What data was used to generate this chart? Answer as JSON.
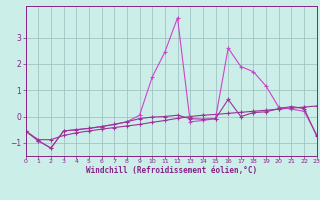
{
  "xlabel": "Windchill (Refroidissement éolien,°C)",
  "xlim": [
    0,
    23
  ],
  "ylim": [
    -1.5,
    4.2
  ],
  "yticks": [
    -1,
    0,
    1,
    2,
    3
  ],
  "xticks": [
    0,
    1,
    2,
    3,
    4,
    5,
    6,
    7,
    8,
    9,
    10,
    11,
    12,
    13,
    14,
    15,
    16,
    17,
    18,
    19,
    20,
    21,
    22,
    23
  ],
  "bg_color": "#cceee8",
  "lc1": "#993399",
  "lc2": "#cc44cc",
  "lc3": "#993399",
  "s1x": [
    0,
    1,
    2,
    3,
    4,
    5,
    6,
    7,
    8,
    9,
    10,
    11,
    12,
    13,
    14,
    15,
    16,
    17,
    18,
    19,
    20,
    21,
    22,
    23
  ],
  "s1y": [
    -0.55,
    -0.92,
    -1.2,
    -0.55,
    -0.5,
    -0.45,
    -0.38,
    -0.3,
    -0.2,
    -0.08,
    -0.02,
    0.0,
    0.05,
    -0.08,
    -0.1,
    -0.08,
    0.65,
    0.0,
    0.15,
    0.18,
    0.3,
    0.38,
    0.3,
    -0.75
  ],
  "s2x": [
    0,
    1,
    2,
    3,
    4,
    5,
    6,
    7,
    8,
    9,
    10,
    11,
    12,
    13,
    14,
    15,
    16,
    17,
    18,
    19,
    20,
    21,
    22,
    23
  ],
  "s2y": [
    -0.55,
    -0.92,
    -1.2,
    -0.55,
    -0.5,
    -0.45,
    -0.38,
    -0.3,
    -0.2,
    0.05,
    1.5,
    2.45,
    3.75,
    -0.2,
    -0.15,
    -0.08,
    2.6,
    1.9,
    1.7,
    1.15,
    0.35,
    0.28,
    0.2,
    -0.7
  ],
  "s3x": [
    0,
    1,
    2,
    3,
    4,
    5,
    6,
    7,
    8,
    9,
    10,
    11,
    12,
    13,
    14,
    15,
    16,
    17,
    18,
    19,
    20,
    21,
    22,
    23
  ],
  "s3y": [
    -0.55,
    -0.88,
    -0.88,
    -0.72,
    -0.62,
    -0.55,
    -0.48,
    -0.42,
    -0.36,
    -0.3,
    -0.22,
    -0.15,
    -0.07,
    0.0,
    0.05,
    0.08,
    0.12,
    0.16,
    0.2,
    0.24,
    0.28,
    0.32,
    0.36,
    0.4
  ]
}
